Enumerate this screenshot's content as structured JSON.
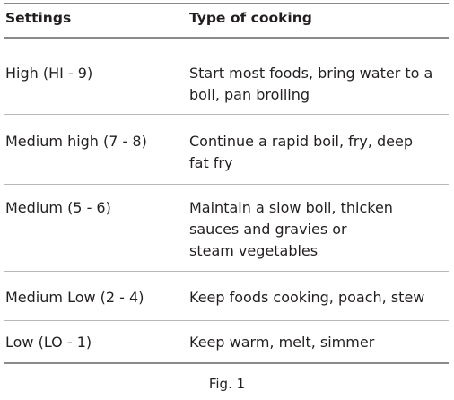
{
  "table": {
    "headers": {
      "settings": "Settings",
      "type": "Type of cooking"
    },
    "rows": [
      {
        "setting": "High (HI - 9)",
        "lines": [
          "Start most foods, bring water to a",
          "boil, pan broiling"
        ]
      },
      {
        "setting": "Medium high (7 - 8)",
        "lines": [
          "Continue a rapid boil, fry, deep",
          "fat fry"
        ]
      },
      {
        "setting": "Medium (5 - 6)",
        "lines": [
          "Maintain a slow boil, thicken",
          "sauces and gravies or",
          "steam vegetables"
        ]
      },
      {
        "setting": "Medium Low (2 - 4)",
        "lines": [
          "Keep foods cooking, poach, stew"
        ]
      },
      {
        "setting": "Low (LO - 1)",
        "lines": [
          "Keep warm, melt, simmer"
        ]
      }
    ]
  },
  "caption": "Fig. 1"
}
